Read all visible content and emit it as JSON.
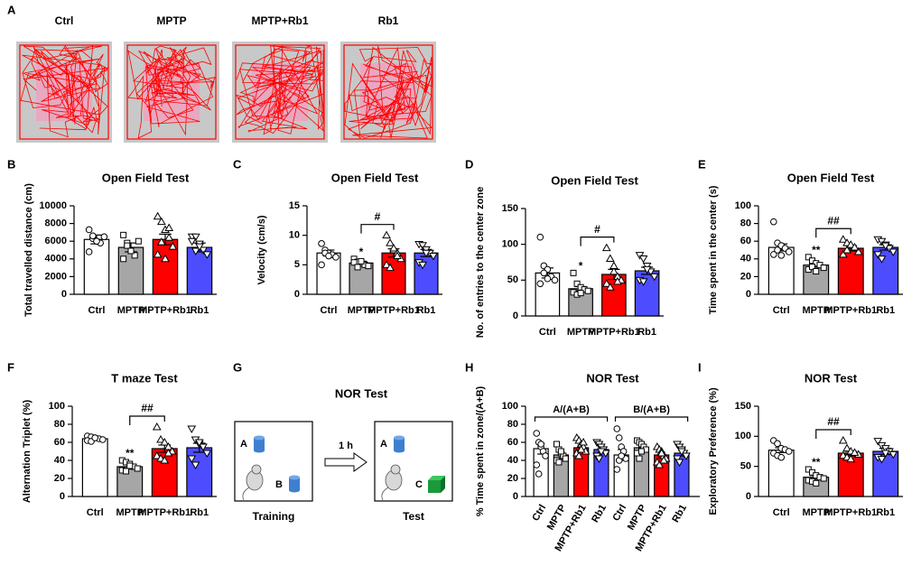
{
  "figure_a": {
    "panel": "A",
    "groups": [
      "Ctrl",
      "MPTP",
      "MPTP+Rb1",
      "Rb1"
    ]
  },
  "figure_g": {
    "panel": "G",
    "title": "NOR Test",
    "training": {
      "label": "Training",
      "objects": [
        "A",
        "B"
      ]
    },
    "interval": "1 h",
    "test": {
      "label": "Test",
      "objects": [
        "A",
        "C"
      ]
    }
  },
  "chart_data": [
    {
      "type": "bar",
      "panel": "B",
      "title": "Open Field Test",
      "ylabel": "Total travelled distance (cm)",
      "categories": [
        "Ctrl",
        "MPTP",
        "MPTP+Rb1",
        "Rb1"
      ],
      "values": [
        6200,
        5300,
        6200,
        5300
      ],
      "errors": [
        500,
        500,
        600,
        500
      ],
      "points": [
        [
          7300,
          6300,
          6000,
          5800,
          6500,
          4800,
          6600,
          6000
        ],
        [
          6700,
          5800,
          5000,
          4400,
          6000,
          4000,
          5500,
          4900
        ],
        [
          8800,
          8200,
          7300,
          6400,
          5400,
          4500,
          5900,
          4000,
          7500
        ],
        [
          6500,
          6500,
          5700,
          5000,
          4500,
          6000,
          4900,
          5400
        ]
      ],
      "colors": [
        "#ffffff",
        "#a6a6a6",
        "#ff0000",
        "#4d4dff"
      ],
      "markers": [
        "circle",
        "square",
        "triangle-up",
        "triangle-down"
      ],
      "ylim": [
        0,
        10000
      ],
      "yticks": [
        0,
        2000,
        4000,
        6000,
        8000,
        10000
      ]
    },
    {
      "type": "bar",
      "panel": "C",
      "title": "Open Field Test",
      "ylabel": "Velocity (cm/s)",
      "categories": [
        "Ctrl",
        "MPTP",
        "MPTP+Rb1",
        "Rb1"
      ],
      "values": [
        7,
        5.3,
        7,
        7
      ],
      "errors": [
        0.5,
        0.3,
        0.7,
        0.6
      ],
      "points": [
        [
          8.6,
          7.5,
          7,
          6.7,
          6.3,
          5,
          7,
          6.5
        ],
        [
          6,
          5.5,
          5.3,
          5,
          4.8,
          5.4,
          4.6,
          5.6
        ],
        [
          10,
          8.7,
          7.5,
          7,
          6,
          5,
          4.5,
          7.8,
          6.5
        ],
        [
          8.5,
          8.3,
          7.6,
          7,
          6.5,
          5.4,
          5,
          7
        ]
      ],
      "colors": [
        "#ffffff",
        "#a6a6a6",
        "#ff0000",
        "#4d4dff"
      ],
      "markers": [
        "circle",
        "square",
        "triangle-up",
        "triangle-down"
      ],
      "ylim": [
        0,
        15
      ],
      "yticks": [
        0,
        5,
        10,
        15
      ],
      "annotations": [
        {
          "text": "*",
          "category": "MPTP"
        }
      ],
      "comparison": {
        "text": "#",
        "between": [
          "MPTP",
          "MPTP+Rb1"
        ]
      }
    },
    {
      "type": "bar",
      "panel": "D",
      "title": "Open Field Test",
      "ylabel": "No. of entries to the center zone",
      "categories": [
        "Ctrl",
        "MPTP",
        "MPTP+Rb1",
        "Rb1"
      ],
      "values": [
        60,
        38,
        58,
        63
      ],
      "errors": [
        7,
        3,
        7,
        5
      ],
      "points": [
        [
          110,
          70,
          65,
          55,
          50,
          45,
          60,
          52
        ],
        [
          60,
          45,
          40,
          37,
          35,
          33,
          30,
          32
        ],
        [
          95,
          80,
          62,
          55,
          50,
          45,
          40,
          70,
          48
        ],
        [
          85,
          80,
          70,
          62,
          55,
          50,
          48,
          65
        ]
      ],
      "colors": [
        "#ffffff",
        "#a6a6a6",
        "#ff0000",
        "#4d4dff"
      ],
      "markers": [
        "circle",
        "square",
        "triangle-up",
        "triangle-down"
      ],
      "ylim": [
        0,
        150
      ],
      "yticks": [
        0,
        50,
        100,
        150
      ],
      "annotations": [
        {
          "text": "*",
          "category": "MPTP"
        }
      ],
      "comparison": {
        "text": "#",
        "between": [
          "MPTP",
          "MPTP+Rb1"
        ]
      }
    },
    {
      "type": "bar",
      "panel": "E",
      "title": "Open Field Test",
      "ylabel": "Time spent in the center (s)",
      "categories": [
        "Ctrl",
        "MPTP",
        "MPTP+Rb1",
        "Rb1"
      ],
      "values": [
        53,
        33,
        52,
        53
      ],
      "errors": [
        4,
        2,
        3,
        3
      ],
      "points": [
        [
          82,
          58,
          55,
          52,
          48,
          45,
          50,
          44
        ],
        [
          42,
          38,
          35,
          33,
          30,
          28,
          31,
          26
        ],
        [
          62,
          58,
          55,
          52,
          48,
          45,
          50,
          56,
          53
        ],
        [
          62,
          60,
          56,
          52,
          48,
          45,
          40,
          55
        ]
      ],
      "colors": [
        "#ffffff",
        "#a6a6a6",
        "#ff0000",
        "#4d4dff"
      ],
      "markers": [
        "circle",
        "square",
        "triangle-up",
        "triangle-down"
      ],
      "ylim": [
        0,
        100
      ],
      "yticks": [
        0,
        20,
        40,
        60,
        80,
        100
      ],
      "annotations": [
        {
          "text": "**",
          "category": "MPTP"
        }
      ],
      "comparison": {
        "text": "##",
        "between": [
          "MPTP",
          "MPTP+Rb1"
        ]
      }
    },
    {
      "type": "bar",
      "panel": "F",
      "title": "T maze Test",
      "ylabel": "Alternation Triplet (%)",
      "categories": [
        "Ctrl",
        "MPTP",
        "MPTP+Rb1",
        "Rb1"
      ],
      "values": [
        64,
        33,
        53,
        54
      ],
      "errors": [
        1.5,
        2.5,
        4,
        5
      ],
      "points": [
        [
          67,
          66,
          65,
          64,
          63,
          62,
          61,
          65
        ],
        [
          40,
          38,
          36,
          33,
          31,
          29,
          28,
          34
        ],
        [
          77,
          63,
          60,
          55,
          50,
          45,
          42,
          40,
          48
        ],
        [
          75,
          63,
          58,
          55,
          48,
          42,
          35,
          60
        ]
      ],
      "colors": [
        "#ffffff",
        "#a6a6a6",
        "#ff0000",
        "#4d4dff"
      ],
      "markers": [
        "circle",
        "square",
        "triangle-up",
        "triangle-down"
      ],
      "ylim": [
        0,
        100
      ],
      "yticks": [
        0,
        20,
        40,
        60,
        80,
        100
      ],
      "annotations": [
        {
          "text": "**",
          "category": "MPTP"
        }
      ],
      "comparison": {
        "text": "##",
        "between": [
          "MPTP",
          "MPTP+Rb1"
        ]
      }
    },
    {
      "type": "bar",
      "panel": "H",
      "title": "NOR Test",
      "ylabel": "% Time spent in zone/(A+B)",
      "sections": [
        {
          "label": "A/(A+B)",
          "categories": [
            "Ctrl",
            "MPTP",
            "MPTP+Rb1",
            "Rb1"
          ],
          "values": [
            53,
            46,
            54,
            52
          ],
          "errors": [
            6,
            3,
            3,
            3
          ],
          "points": [
            [
              70,
              60,
              55,
              50,
              45,
              35,
              25,
              58
            ],
            [
              58,
              52,
              48,
              45,
              42,
              40,
              38,
              50
            ],
            [
              65,
              62,
              58,
              55,
              50,
              48,
              45,
              52,
              60
            ],
            [
              60,
              58,
              55,
              52,
              48,
              45,
              42,
              50
            ]
          ]
        },
        {
          "label": "B/(A+B)",
          "categories": [
            "Ctrl",
            "MPTP",
            "MPTP+Rb1",
            "Rb1"
          ],
          "values": [
            46,
            54,
            46,
            48
          ],
          "errors": [
            6,
            3,
            3,
            3
          ],
          "points": [
            [
              75,
              65,
              55,
              50,
              42,
              30,
              40,
              45
            ],
            [
              62,
              60,
              58,
              55,
              52,
              48,
              42,
              50
            ],
            [
              55,
              52,
              50,
              45,
              42,
              38,
              35,
              48,
              40
            ],
            [
              58,
              55,
              52,
              48,
              45,
              42,
              38,
              50
            ]
          ]
        }
      ],
      "colors": [
        "#ffffff",
        "#a6a6a6",
        "#ff0000",
        "#4d4dff"
      ],
      "markers": [
        "circle",
        "square",
        "triangle-up",
        "triangle-down"
      ],
      "ylim": [
        0,
        100
      ],
      "yticks": [
        0,
        20,
        40,
        60,
        80,
        100
      ]
    },
    {
      "type": "bar",
      "panel": "I",
      "title": "NOR Test",
      "ylabel": "Exploratory Preference (%)",
      "categories": [
        "Ctrl",
        "MPTP",
        "MPTP+Rb1",
        "Rb1"
      ],
      "values": [
        77,
        32,
        72,
        75
      ],
      "errors": [
        4,
        3,
        3,
        5
      ],
      "points": [
        [
          93,
          88,
          80,
          78,
          75,
          72,
          68,
          65
        ],
        [
          45,
          40,
          35,
          32,
          30,
          27,
          25,
          22
        ],
        [
          93,
          80,
          75,
          72,
          70,
          68,
          65,
          62,
          73
        ],
        [
          92,
          85,
          80,
          75,
          70,
          65,
          62,
          72
        ]
      ],
      "colors": [
        "#ffffff",
        "#a6a6a6",
        "#ff0000",
        "#4d4dff"
      ],
      "markers": [
        "circle",
        "square",
        "triangle-up",
        "triangle-down"
      ],
      "ylim": [
        0,
        150
      ],
      "yticks": [
        0,
        50,
        100,
        150
      ],
      "annotations": [
        {
          "text": "**",
          "category": "MPTP"
        }
      ],
      "comparison": {
        "text": "##",
        "between": [
          "MPTP",
          "MPTP+Rb1"
        ]
      }
    }
  ]
}
